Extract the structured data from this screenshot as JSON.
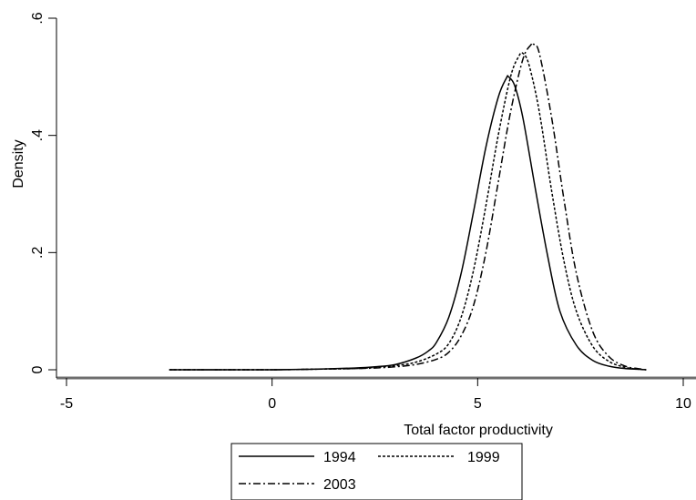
{
  "chart_data": {
    "type": "line",
    "title": "",
    "xlabel": "Total factor productivity",
    "ylabel": "Density",
    "xlim": [
      -5,
      10
    ],
    "ylim": [
      0,
      0.6
    ],
    "x_ticks": [
      -5,
      0,
      5,
      10
    ],
    "x_tick_labels": [
      "-5",
      "0",
      "5",
      "10"
    ],
    "y_ticks": [
      0,
      0.2,
      0.4,
      0.6
    ],
    "y_tick_labels": [
      "0",
      ".2",
      ".4",
      ".6"
    ],
    "grid": false,
    "legend_position": "bottom",
    "series": [
      {
        "name": "1994",
        "line_style": "solid",
        "color": "#000000",
        "x": [
          -2.5,
          0,
          1,
          2,
          2.5,
          3,
          3.5,
          3.8,
          4.0,
          4.3,
          4.6,
          4.9,
          5.2,
          5.5,
          5.7,
          5.75,
          5.9,
          6.1,
          6.4,
          6.7,
          7.0,
          7.4,
          7.8,
          8.2,
          8.6,
          8.9,
          9.1
        ],
        "y": [
          0,
          0,
          0.001,
          0.003,
          0.005,
          0.009,
          0.02,
          0.032,
          0.047,
          0.09,
          0.165,
          0.27,
          0.38,
          0.465,
          0.498,
          0.5,
          0.485,
          0.43,
          0.31,
          0.195,
          0.1,
          0.042,
          0.016,
          0.006,
          0.002,
          0.001,
          0
        ]
      },
      {
        "name": "1999",
        "line_style": "dashed",
        "color": "#000000",
        "x": [
          -2.5,
          0,
          1,
          2,
          2.5,
          3,
          3.5,
          4.0,
          4.3,
          4.6,
          4.9,
          5.2,
          5.5,
          5.8,
          6.0,
          6.1,
          6.25,
          6.5,
          6.8,
          7.1,
          7.4,
          7.8,
          8.2,
          8.6,
          8.9,
          9.1
        ],
        "y": [
          0,
          0,
          0.001,
          0.002,
          0.004,
          0.007,
          0.013,
          0.027,
          0.045,
          0.09,
          0.17,
          0.28,
          0.4,
          0.5,
          0.535,
          0.54,
          0.52,
          0.44,
          0.305,
          0.185,
          0.1,
          0.04,
          0.014,
          0.004,
          0.001,
          0
        ]
      },
      {
        "name": "2003",
        "line_style": "dash-dot",
        "color": "#000000",
        "x": [
          -2.5,
          0,
          1,
          2,
          2.5,
          3,
          3.5,
          4.0,
          4.3,
          4.6,
          4.9,
          5.2,
          5.5,
          5.8,
          6.1,
          6.3,
          6.35,
          6.5,
          6.8,
          7.1,
          7.4,
          7.8,
          8.2,
          8.6,
          8.9,
          9.1
        ],
        "y": [
          0,
          0,
          0.001,
          0.002,
          0.003,
          0.005,
          0.009,
          0.018,
          0.03,
          0.058,
          0.11,
          0.2,
          0.32,
          0.44,
          0.53,
          0.555,
          0.556,
          0.54,
          0.43,
          0.29,
          0.165,
          0.065,
          0.022,
          0.006,
          0.002,
          0
        ]
      }
    ]
  }
}
